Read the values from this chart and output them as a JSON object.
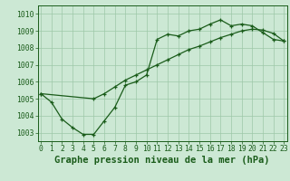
{
  "title": "Graphe pression niveau de la mer (hPa)",
  "x_ticks": [
    0,
    1,
    2,
    3,
    4,
    5,
    6,
    7,
    8,
    9,
    10,
    11,
    12,
    13,
    14,
    15,
    16,
    17,
    18,
    19,
    20,
    21,
    22,
    23
  ],
  "y_ticks": [
    1003,
    1004,
    1005,
    1006,
    1007,
    1008,
    1009,
    1010
  ],
  "ylim": [
    1002.5,
    1010.5
  ],
  "xlim": [
    -0.3,
    23.3
  ],
  "line1_x": [
    0,
    1,
    2,
    3,
    4,
    5,
    6,
    7,
    8,
    9,
    10,
    11,
    12,
    13,
    14,
    15,
    16,
    17,
    18,
    19,
    20,
    21,
    22,
    23
  ],
  "line1_y": [
    1005.3,
    1004.8,
    1003.8,
    1003.3,
    1002.9,
    1002.9,
    1003.7,
    1004.5,
    1005.8,
    1006.0,
    1006.4,
    1008.5,
    1008.8,
    1008.7,
    1009.0,
    1009.1,
    1009.4,
    1009.65,
    1009.3,
    1009.4,
    1009.3,
    1008.9,
    1008.5,
    1008.4
  ],
  "line2_x": [
    0,
    5,
    6,
    7,
    8,
    9,
    10,
    11,
    12,
    13,
    14,
    15,
    16,
    17,
    18,
    19,
    20,
    21,
    22,
    23
  ],
  "line2_y": [
    1005.3,
    1005.0,
    1005.3,
    1005.7,
    1006.1,
    1006.4,
    1006.7,
    1007.0,
    1007.3,
    1007.6,
    1007.9,
    1008.1,
    1008.35,
    1008.6,
    1008.8,
    1009.0,
    1009.1,
    1009.05,
    1008.85,
    1008.4
  ],
  "bg_color": "#cce8d4",
  "plot_bg_color": "#cce8d4",
  "line_color": "#1a5c1a",
  "grid_color": "#9ec8a8",
  "title_color": "#1a5c1a",
  "tick_label_color": "#1a5c1a",
  "title_fontsize": 7.5,
  "tick_fontsize": 5.8
}
